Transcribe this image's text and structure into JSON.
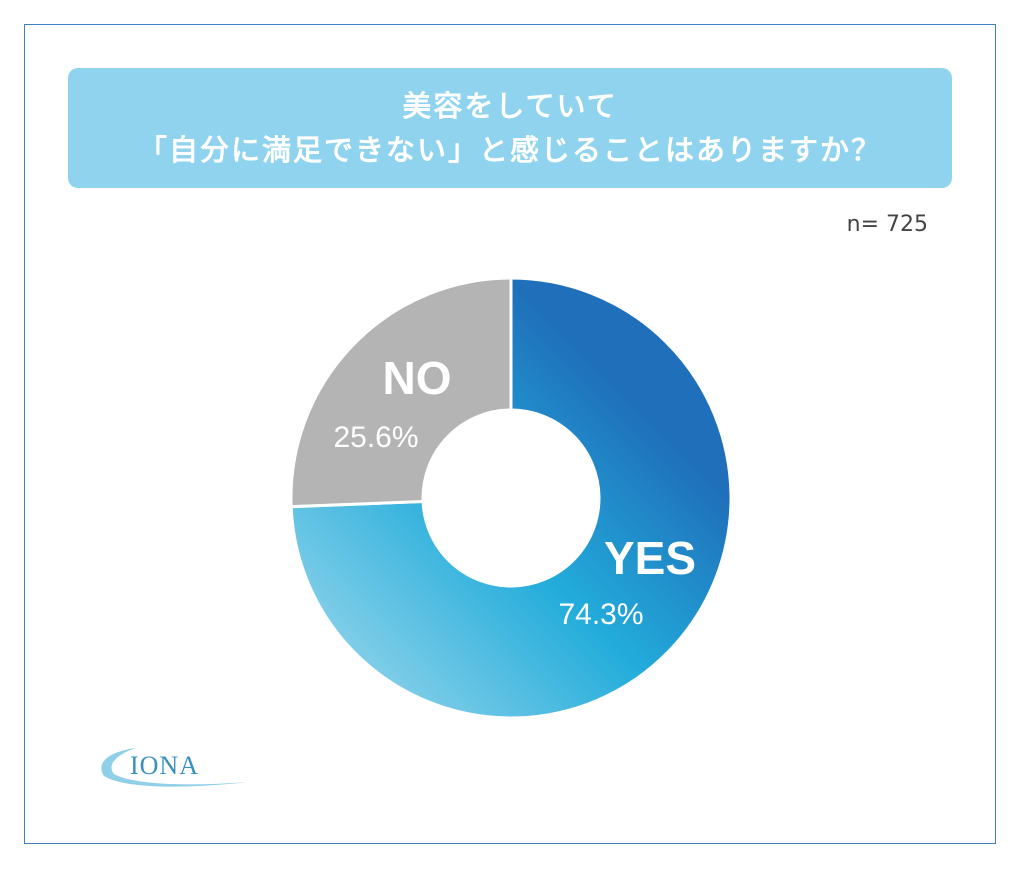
{
  "title_lines": [
    "美容をしていて",
    "「自分に満足できない」と感じることはありますか？"
  ],
  "sample_size": "n= 725",
  "logo_text": "IONA",
  "colors": {
    "frame": "#3f7fc4",
    "title_bg": "#8fd3ee",
    "yes_dark": "#1f6fba",
    "yes_mid": "#22acdb",
    "yes_light": "#8fd2ea",
    "no": "#b4b4b4"
  },
  "chart_data": {
    "type": "pie",
    "variant": "donut",
    "title": "美容をしていて「自分に満足できない」と感じることはありますか？",
    "n": 725,
    "categories": [
      "YES",
      "NO"
    ],
    "values": [
      74.3,
      25.6
    ],
    "labels": [
      "74.3%",
      "25.6%"
    ],
    "start": "top",
    "direction": "YES clockwise from top, NO counterclockwise from top"
  }
}
